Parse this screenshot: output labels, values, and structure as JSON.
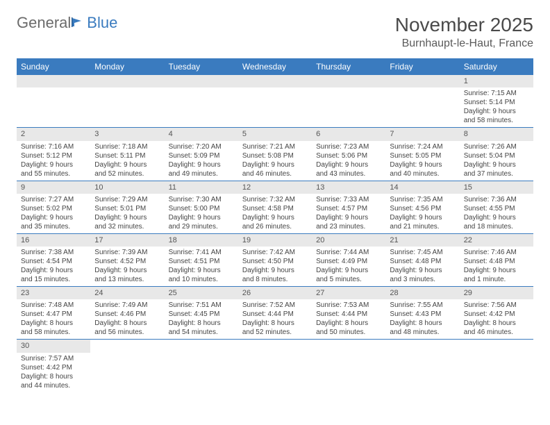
{
  "logo": {
    "part1": "General",
    "part2": "Blue"
  },
  "title": "November 2025",
  "location": "Burnhaupt-le-Haut, France",
  "colors": {
    "header_bg": "#3a7bbf",
    "header_text": "#ffffff",
    "daynum_bg": "#e8e8e8",
    "border": "#3a7bbf",
    "text": "#444444",
    "title_text": "#4a4a4a",
    "logo_gray": "#6b6b6b",
    "logo_blue": "#3a7bbf"
  },
  "day_names": [
    "Sunday",
    "Monday",
    "Tuesday",
    "Wednesday",
    "Thursday",
    "Friday",
    "Saturday"
  ],
  "weeks": [
    [
      null,
      null,
      null,
      null,
      null,
      null,
      {
        "n": "1",
        "sr": "Sunrise: 7:15 AM",
        "ss": "Sunset: 5:14 PM",
        "d1": "Daylight: 9 hours",
        "d2": "and 58 minutes."
      }
    ],
    [
      {
        "n": "2",
        "sr": "Sunrise: 7:16 AM",
        "ss": "Sunset: 5:12 PM",
        "d1": "Daylight: 9 hours",
        "d2": "and 55 minutes."
      },
      {
        "n": "3",
        "sr": "Sunrise: 7:18 AM",
        "ss": "Sunset: 5:11 PM",
        "d1": "Daylight: 9 hours",
        "d2": "and 52 minutes."
      },
      {
        "n": "4",
        "sr": "Sunrise: 7:20 AM",
        "ss": "Sunset: 5:09 PM",
        "d1": "Daylight: 9 hours",
        "d2": "and 49 minutes."
      },
      {
        "n": "5",
        "sr": "Sunrise: 7:21 AM",
        "ss": "Sunset: 5:08 PM",
        "d1": "Daylight: 9 hours",
        "d2": "and 46 minutes."
      },
      {
        "n": "6",
        "sr": "Sunrise: 7:23 AM",
        "ss": "Sunset: 5:06 PM",
        "d1": "Daylight: 9 hours",
        "d2": "and 43 minutes."
      },
      {
        "n": "7",
        "sr": "Sunrise: 7:24 AM",
        "ss": "Sunset: 5:05 PM",
        "d1": "Daylight: 9 hours",
        "d2": "and 40 minutes."
      },
      {
        "n": "8",
        "sr": "Sunrise: 7:26 AM",
        "ss": "Sunset: 5:04 PM",
        "d1": "Daylight: 9 hours",
        "d2": "and 37 minutes."
      }
    ],
    [
      {
        "n": "9",
        "sr": "Sunrise: 7:27 AM",
        "ss": "Sunset: 5:02 PM",
        "d1": "Daylight: 9 hours",
        "d2": "and 35 minutes."
      },
      {
        "n": "10",
        "sr": "Sunrise: 7:29 AM",
        "ss": "Sunset: 5:01 PM",
        "d1": "Daylight: 9 hours",
        "d2": "and 32 minutes."
      },
      {
        "n": "11",
        "sr": "Sunrise: 7:30 AM",
        "ss": "Sunset: 5:00 PM",
        "d1": "Daylight: 9 hours",
        "d2": "and 29 minutes."
      },
      {
        "n": "12",
        "sr": "Sunrise: 7:32 AM",
        "ss": "Sunset: 4:58 PM",
        "d1": "Daylight: 9 hours",
        "d2": "and 26 minutes."
      },
      {
        "n": "13",
        "sr": "Sunrise: 7:33 AM",
        "ss": "Sunset: 4:57 PM",
        "d1": "Daylight: 9 hours",
        "d2": "and 23 minutes."
      },
      {
        "n": "14",
        "sr": "Sunrise: 7:35 AM",
        "ss": "Sunset: 4:56 PM",
        "d1": "Daylight: 9 hours",
        "d2": "and 21 minutes."
      },
      {
        "n": "15",
        "sr": "Sunrise: 7:36 AM",
        "ss": "Sunset: 4:55 PM",
        "d1": "Daylight: 9 hours",
        "d2": "and 18 minutes."
      }
    ],
    [
      {
        "n": "16",
        "sr": "Sunrise: 7:38 AM",
        "ss": "Sunset: 4:54 PM",
        "d1": "Daylight: 9 hours",
        "d2": "and 15 minutes."
      },
      {
        "n": "17",
        "sr": "Sunrise: 7:39 AM",
        "ss": "Sunset: 4:52 PM",
        "d1": "Daylight: 9 hours",
        "d2": "and 13 minutes."
      },
      {
        "n": "18",
        "sr": "Sunrise: 7:41 AM",
        "ss": "Sunset: 4:51 PM",
        "d1": "Daylight: 9 hours",
        "d2": "and 10 minutes."
      },
      {
        "n": "19",
        "sr": "Sunrise: 7:42 AM",
        "ss": "Sunset: 4:50 PM",
        "d1": "Daylight: 9 hours",
        "d2": "and 8 minutes."
      },
      {
        "n": "20",
        "sr": "Sunrise: 7:44 AM",
        "ss": "Sunset: 4:49 PM",
        "d1": "Daylight: 9 hours",
        "d2": "and 5 minutes."
      },
      {
        "n": "21",
        "sr": "Sunrise: 7:45 AM",
        "ss": "Sunset: 4:48 PM",
        "d1": "Daylight: 9 hours",
        "d2": "and 3 minutes."
      },
      {
        "n": "22",
        "sr": "Sunrise: 7:46 AM",
        "ss": "Sunset: 4:48 PM",
        "d1": "Daylight: 9 hours",
        "d2": "and 1 minute."
      }
    ],
    [
      {
        "n": "23",
        "sr": "Sunrise: 7:48 AM",
        "ss": "Sunset: 4:47 PM",
        "d1": "Daylight: 8 hours",
        "d2": "and 58 minutes."
      },
      {
        "n": "24",
        "sr": "Sunrise: 7:49 AM",
        "ss": "Sunset: 4:46 PM",
        "d1": "Daylight: 8 hours",
        "d2": "and 56 minutes."
      },
      {
        "n": "25",
        "sr": "Sunrise: 7:51 AM",
        "ss": "Sunset: 4:45 PM",
        "d1": "Daylight: 8 hours",
        "d2": "and 54 minutes."
      },
      {
        "n": "26",
        "sr": "Sunrise: 7:52 AM",
        "ss": "Sunset: 4:44 PM",
        "d1": "Daylight: 8 hours",
        "d2": "and 52 minutes."
      },
      {
        "n": "27",
        "sr": "Sunrise: 7:53 AM",
        "ss": "Sunset: 4:44 PM",
        "d1": "Daylight: 8 hours",
        "d2": "and 50 minutes."
      },
      {
        "n": "28",
        "sr": "Sunrise: 7:55 AM",
        "ss": "Sunset: 4:43 PM",
        "d1": "Daylight: 8 hours",
        "d2": "and 48 minutes."
      },
      {
        "n": "29",
        "sr": "Sunrise: 7:56 AM",
        "ss": "Sunset: 4:42 PM",
        "d1": "Daylight: 8 hours",
        "d2": "and 46 minutes."
      }
    ],
    [
      {
        "n": "30",
        "sr": "Sunrise: 7:57 AM",
        "ss": "Sunset: 4:42 PM",
        "d1": "Daylight: 8 hours",
        "d2": "and 44 minutes."
      },
      null,
      null,
      null,
      null,
      null,
      null
    ]
  ]
}
